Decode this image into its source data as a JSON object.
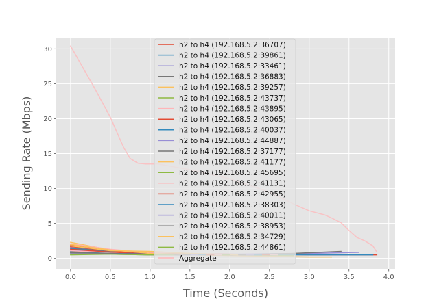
{
  "chart_data": {
    "type": "line",
    "title": "",
    "xlabel": "Time (Seconds)",
    "ylabel": "Sending Rate (Mbps)",
    "xlim": [
      -0.18,
      4.08
    ],
    "ylim": [
      -1.5,
      31.6
    ],
    "x_ticks": [
      "0.0",
      "0.5",
      "1.0",
      "1.5",
      "2.0",
      "2.5",
      "3.0",
      "3.5",
      "4.0"
    ],
    "y_ticks": [
      "0",
      "5",
      "10",
      "15",
      "20",
      "25",
      "30"
    ],
    "grid": true,
    "legend_position": "upper-center",
    "series": [
      {
        "name": "h2 to h4 (192.168.5.2:36707)",
        "color": "#E24A33",
        "points": [
          [
            0.0,
            1.9
          ],
          [
            0.5,
            1.1
          ],
          [
            1.0,
            0.7
          ],
          [
            2.0,
            0.6
          ],
          [
            3.0,
            0.5
          ],
          [
            3.85,
            0.5
          ]
        ]
      },
      {
        "name": "h2 to h4 (192.168.5.2:39861)",
        "color": "#348ABD",
        "points": [
          [
            0.0,
            0.8
          ],
          [
            0.5,
            0.7
          ],
          [
            1.0,
            0.6
          ],
          [
            2.0,
            0.55
          ],
          [
            3.0,
            0.5
          ],
          [
            3.8,
            0.5
          ]
        ]
      },
      {
        "name": "h2 to h4 (192.168.5.2:33461)",
        "color": "#988ED5",
        "points": [
          [
            0.0,
            1.6
          ],
          [
            0.5,
            1.0
          ],
          [
            1.0,
            0.7
          ],
          [
            2.0,
            0.6
          ],
          [
            3.0,
            0.7
          ],
          [
            3.62,
            0.85
          ]
        ]
      },
      {
        "name": "h2 to h4 (192.168.5.2:36883)",
        "color": "#777777",
        "points": [
          [
            0.0,
            1.5
          ],
          [
            0.5,
            1.0
          ],
          [
            1.0,
            0.6
          ],
          [
            2.0,
            0.5
          ],
          [
            2.8,
            0.7
          ],
          [
            3.4,
            1.0
          ]
        ]
      },
      {
        "name": "h2 to h4 (192.168.5.2:39257)",
        "color": "#FBC15E",
        "points": [
          [
            0.0,
            2.3
          ],
          [
            0.5,
            1.2
          ],
          [
            1.0,
            0.6
          ],
          [
            2.0,
            0.4
          ],
          [
            3.0,
            0.2
          ],
          [
            3.28,
            0.2
          ]
        ]
      },
      {
        "name": "h2 to h4 (192.168.5.2:43737)",
        "color": "#8EBA42",
        "points": [
          [
            0.0,
            0.5
          ],
          [
            0.5,
            0.6
          ],
          [
            1.0,
            0.6
          ],
          [
            2.0,
            0.5
          ],
          [
            2.8,
            0.4
          ]
        ]
      },
      {
        "name": "h2 to h4 (192.168.5.2:43895)",
        "color": "#FFB5B8",
        "points": [
          [
            0.0,
            2.1
          ],
          [
            0.5,
            1.3
          ],
          [
            1.0,
            0.8
          ],
          [
            2.0,
            0.6
          ],
          [
            2.6,
            0.5
          ]
        ]
      },
      {
        "name": "h2 to h4 (192.168.5.2:43065)",
        "color": "#E24A33",
        "points": [
          [
            0.0,
            1.7
          ],
          [
            0.5,
            1.1
          ],
          [
            1.0,
            0.7
          ],
          [
            2.0,
            0.6
          ],
          [
            2.5,
            0.5
          ]
        ]
      },
      {
        "name": "h2 to h4 (192.168.5.2:40037)",
        "color": "#348ABD",
        "points": [
          [
            0.0,
            1.4
          ],
          [
            0.5,
            0.9
          ],
          [
            1.0,
            0.6
          ],
          [
            2.0,
            0.5
          ],
          [
            2.4,
            0.5
          ]
        ]
      },
      {
        "name": "h2 to h4 (192.168.5.2:44887)",
        "color": "#988ED5",
        "points": [
          [
            0.0,
            1.2
          ],
          [
            0.5,
            0.8
          ],
          [
            1.0,
            0.6
          ],
          [
            2.0,
            0.5
          ],
          [
            2.3,
            0.5
          ]
        ]
      },
      {
        "name": "h2 to h4 (192.168.5.2:37177)",
        "color": "#777777",
        "points": [
          [
            0.0,
            1.0
          ],
          [
            0.5,
            0.8
          ],
          [
            1.0,
            0.6
          ],
          [
            2.0,
            0.5
          ],
          [
            2.2,
            0.5
          ]
        ]
      },
      {
        "name": "h2 to h4 (192.168.5.2:41177)",
        "color": "#FBC15E",
        "points": [
          [
            0.0,
            1.8
          ],
          [
            0.5,
            1.1
          ],
          [
            1.0,
            1.0
          ],
          [
            1.5,
            0.7
          ],
          [
            2.1,
            0.5
          ]
        ]
      },
      {
        "name": "h2 to h4 (192.168.5.2:45695)",
        "color": "#8EBA42",
        "points": [
          [
            0.0,
            0.6
          ],
          [
            0.5,
            0.6
          ],
          [
            1.0,
            0.5
          ],
          [
            2.0,
            0.5
          ]
        ]
      },
      {
        "name": "h2 to h4 (192.168.5.2:41131)",
        "color": "#FFB5B8",
        "points": [
          [
            0.0,
            1.1
          ],
          [
            0.5,
            0.8
          ],
          [
            1.0,
            0.6
          ],
          [
            1.9,
            0.5
          ]
        ]
      },
      {
        "name": "h2 to h4 (192.168.5.2:42955)",
        "color": "#E24A33",
        "points": [
          [
            0.0,
            1.3
          ],
          [
            0.5,
            0.9
          ],
          [
            1.0,
            0.6
          ],
          [
            1.8,
            0.5
          ]
        ]
      },
      {
        "name": "h2 to h4 (192.168.5.2:38303)",
        "color": "#348ABD",
        "points": [
          [
            0.0,
            0.9
          ],
          [
            0.5,
            0.7
          ],
          [
            1.0,
            0.6
          ],
          [
            1.7,
            0.5
          ]
        ]
      },
      {
        "name": "h2 to h4 (192.168.5.2:40011)",
        "color": "#988ED5",
        "points": [
          [
            0.0,
            0.7
          ],
          [
            0.5,
            0.6
          ],
          [
            1.0,
            0.5
          ],
          [
            1.6,
            0.5
          ]
        ]
      },
      {
        "name": "h2 to h4 (192.168.5.2:38953)",
        "color": "#777777",
        "points": [
          [
            0.0,
            0.8
          ],
          [
            0.5,
            0.7
          ],
          [
            1.0,
            0.5
          ],
          [
            1.5,
            0.5
          ]
        ]
      },
      {
        "name": "h2 to h4 (192.168.5.2:34729)",
        "color": "#FBC15E",
        "points": [
          [
            0.0,
            2.0
          ],
          [
            0.5,
            1.2
          ],
          [
            1.0,
            0.7
          ],
          [
            1.4,
            0.6
          ]
        ]
      },
      {
        "name": "h2 to h4 (192.168.5.2:44861)",
        "color": "#8EBA42",
        "points": [
          [
            0.0,
            0.6
          ],
          [
            0.5,
            0.6
          ],
          [
            1.0,
            0.5
          ],
          [
            1.3,
            0.5
          ]
        ]
      },
      {
        "name": "Aggregate",
        "color": "#FFB5B8",
        "points": [
          [
            0.0,
            30.4
          ],
          [
            0.1,
            28.4
          ],
          [
            0.2,
            26.4
          ],
          [
            0.3,
            24.4
          ],
          [
            0.4,
            22.3
          ],
          [
            0.5,
            20.2
          ],
          [
            0.6,
            17.6
          ],
          [
            0.67,
            15.8
          ],
          [
            0.75,
            14.3
          ],
          [
            0.85,
            13.6
          ],
          [
            0.95,
            13.5
          ],
          [
            1.1,
            13.5
          ],
          [
            1.5,
            12.7
          ],
          [
            2.0,
            11.4
          ],
          [
            2.5,
            9.5
          ],
          [
            2.8,
            7.8
          ],
          [
            3.0,
            6.8
          ],
          [
            3.2,
            6.2
          ],
          [
            3.28,
            5.8
          ],
          [
            3.4,
            5.1
          ],
          [
            3.5,
            4.0
          ],
          [
            3.6,
            3.0
          ],
          [
            3.7,
            2.5
          ],
          [
            3.8,
            1.8
          ],
          [
            3.85,
            0.9
          ]
        ]
      }
    ]
  }
}
